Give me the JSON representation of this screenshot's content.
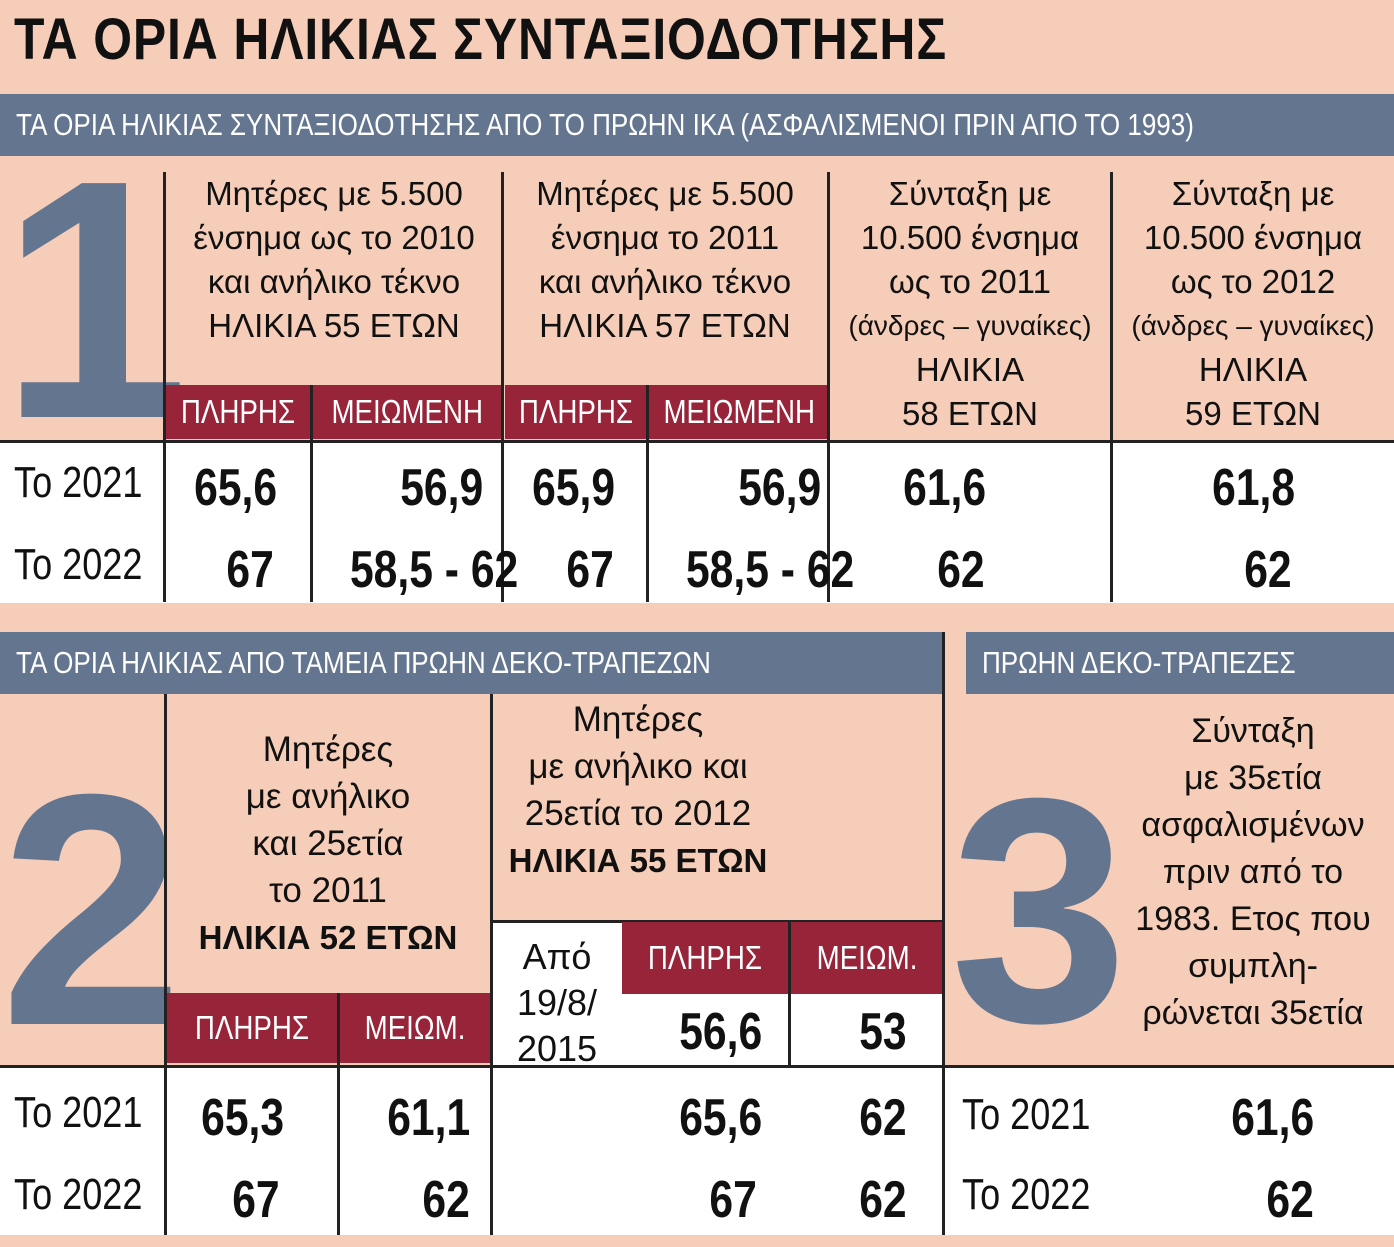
{
  "title": "ΤΑ ΟΡΙΑ ΗΛΙΚΙΑΣ ΣΥΝΤΑΞΙΟΔΟΤΗΣΗΣ",
  "section1": {
    "number": "1",
    "heading": "ΤΑ ΟΡΙΑ ΗΛΙΚΙΑΣ ΣΥΝΤΑΞΙΟΔΟΤΗΣΗΣ ΑΠΟ ΤΟ ΠΡΩΗΝ ΙΚΑ (ΑΣΦΑΛΙΣΜΕΝΟΙ ΠΡΙΝ ΑΠΟ ΤΟ 1993)",
    "columns": [
      {
        "lines": [
          "Μητέρες με 5.500",
          "ένσημα ως το 2010",
          "και ανήλικο τέκνο",
          "ΗΛΙΚΙΑ 55 ΕΤΩΝ"
        ]
      },
      {
        "lines": [
          "Μητέρες με 5.500",
          "ένσημα το 2011",
          "και ανήλικο τέκνο",
          "ΗΛΙΚΙΑ 57 ΕΤΩΝ"
        ]
      },
      {
        "lines": [
          "Σύνταξη με",
          "10.500 ένσημα",
          "ως το 2011",
          "(άνδρες – γυναίκες)",
          "ΗΛΙΚΙΑ",
          "58 ΕΤΩΝ"
        ]
      },
      {
        "lines": [
          "Σύνταξη με",
          "10.500 ένσημα",
          "ως το 2012",
          "(άνδρες – γυναίκες)",
          "ΗΛΙΚΙΑ",
          "59 ΕΤΩΝ"
        ]
      }
    ],
    "sub_full": "ΠΛΗΡΗΣ",
    "sub_reduced": "ΜΕΙΩΜΕΝΗ",
    "rows": [
      {
        "label": "Το 2021",
        "values": [
          "65,6",
          "56,9",
          "65,9",
          "56,9",
          "61,6",
          "61,8"
        ]
      },
      {
        "label": "Το 2022",
        "values": [
          "67",
          "58,5 - 62",
          "67",
          "58,5 - 62",
          "62",
          "62"
        ]
      }
    ]
  },
  "section2": {
    "number": "2",
    "heading": "ΤΑ ΟΡΙΑ ΗΛΙΚΙΑΣ ΑΠΟ ΤΑΜΕΙΑ ΠΡΩΗΝ ΔΕΚΟ-ΤΡΑΠΕΖΩΝ",
    "col1_lines": [
      "Μητέρες",
      "με ανήλικο",
      "και 25ετία",
      "το 2011"
    ],
    "col1_age": "ΗΛΙΚΙΑ 52 ΕΤΩΝ",
    "col2_lines": [
      "Μητέρες",
      "με ανήλικο και",
      "25ετία το 2012"
    ],
    "col2_age": "ΗΛΙΚΙΑ 55 ΕΤΩΝ",
    "sub_full": "ΠΛΗΡΗΣ",
    "sub_reduced": "ΜΕΙΩΜ.",
    "from_lines": [
      "Από",
      "19/8/",
      "2015"
    ],
    "from_values": [
      "56,6",
      "53"
    ],
    "rows": [
      {
        "label": "Το 2021",
        "values": [
          "65,3",
          "61,1",
          "65,6",
          "62"
        ]
      },
      {
        "label": "Το 2022",
        "values": [
          "67",
          "62",
          "67",
          "62"
        ]
      }
    ]
  },
  "section3": {
    "number": "3",
    "heading": "ΠΡΩΗΝ ΔΕΚΟ-ΤΡΑΠΕΖΕΣ",
    "lines": [
      "Σύνταξη",
      "με 35ετία",
      "ασφαλισμένων",
      "πριν από το",
      "1983. Ετος που",
      "συμπλη-",
      "ρώνεται 35ετία"
    ],
    "rows": [
      {
        "label": "Το 2021",
        "value": "61,6"
      },
      {
        "label": "Το 2022",
        "value": "62"
      }
    ]
  },
  "colors": {
    "background": "#f6cdb8",
    "band": "#647590",
    "red": "#98243a",
    "number": "#647590"
  }
}
